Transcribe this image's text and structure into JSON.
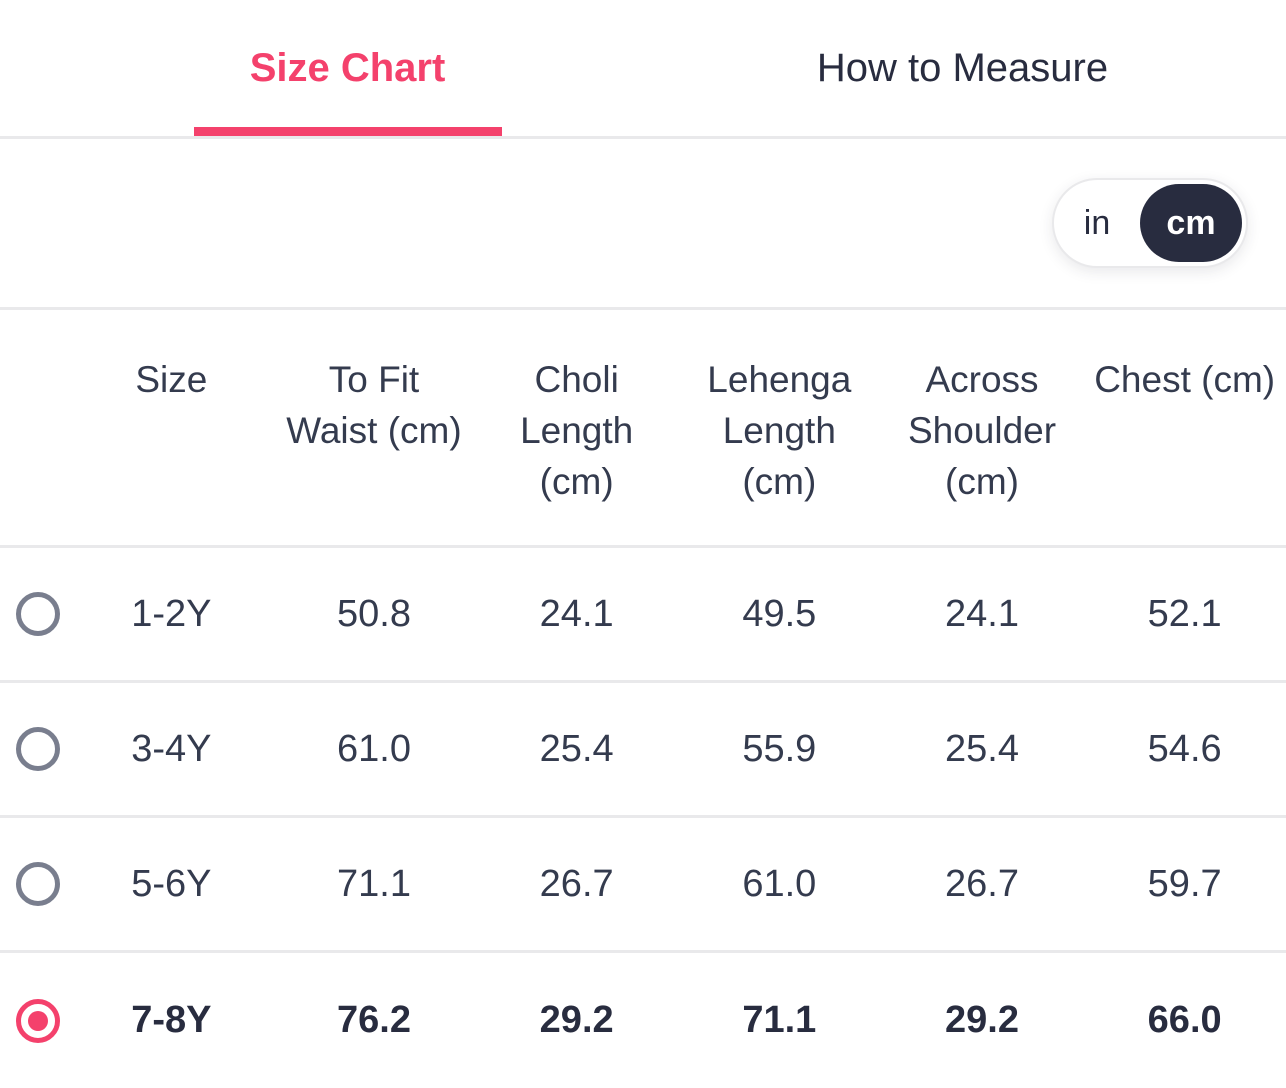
{
  "tabs": [
    {
      "label": "Size Chart",
      "active": true
    },
    {
      "label": "How to Measure",
      "active": false
    }
  ],
  "unit_toggle": {
    "options": [
      "in",
      "cm"
    ],
    "selected": "cm"
  },
  "table": {
    "columns": [
      "Size",
      "To Fit Waist (cm)",
      "Choli Length (cm)",
      "Lehenga Length (cm)",
      "Across Shoulder (cm)",
      "Chest (cm)"
    ],
    "rows": [
      {
        "size": "1-2Y",
        "values": [
          "50.8",
          "24.1",
          "49.5",
          "24.1",
          "52.1"
        ],
        "selected": false
      },
      {
        "size": "3-4Y",
        "values": [
          "61.0",
          "25.4",
          "55.9",
          "25.4",
          "54.6"
        ],
        "selected": false
      },
      {
        "size": "5-6Y",
        "values": [
          "71.1",
          "26.7",
          "61.0",
          "26.7",
          "59.7"
        ],
        "selected": false
      },
      {
        "size": "7-8Y",
        "values": [
          "76.2",
          "29.2",
          "71.1",
          "29.2",
          "66.0"
        ],
        "selected": true
      }
    ]
  },
  "colors": {
    "accent": "#F4416C",
    "dark": "#282C3F",
    "text": "#343B4E",
    "divider": "#E9E9EB",
    "radio_gray": "#797E8E"
  }
}
